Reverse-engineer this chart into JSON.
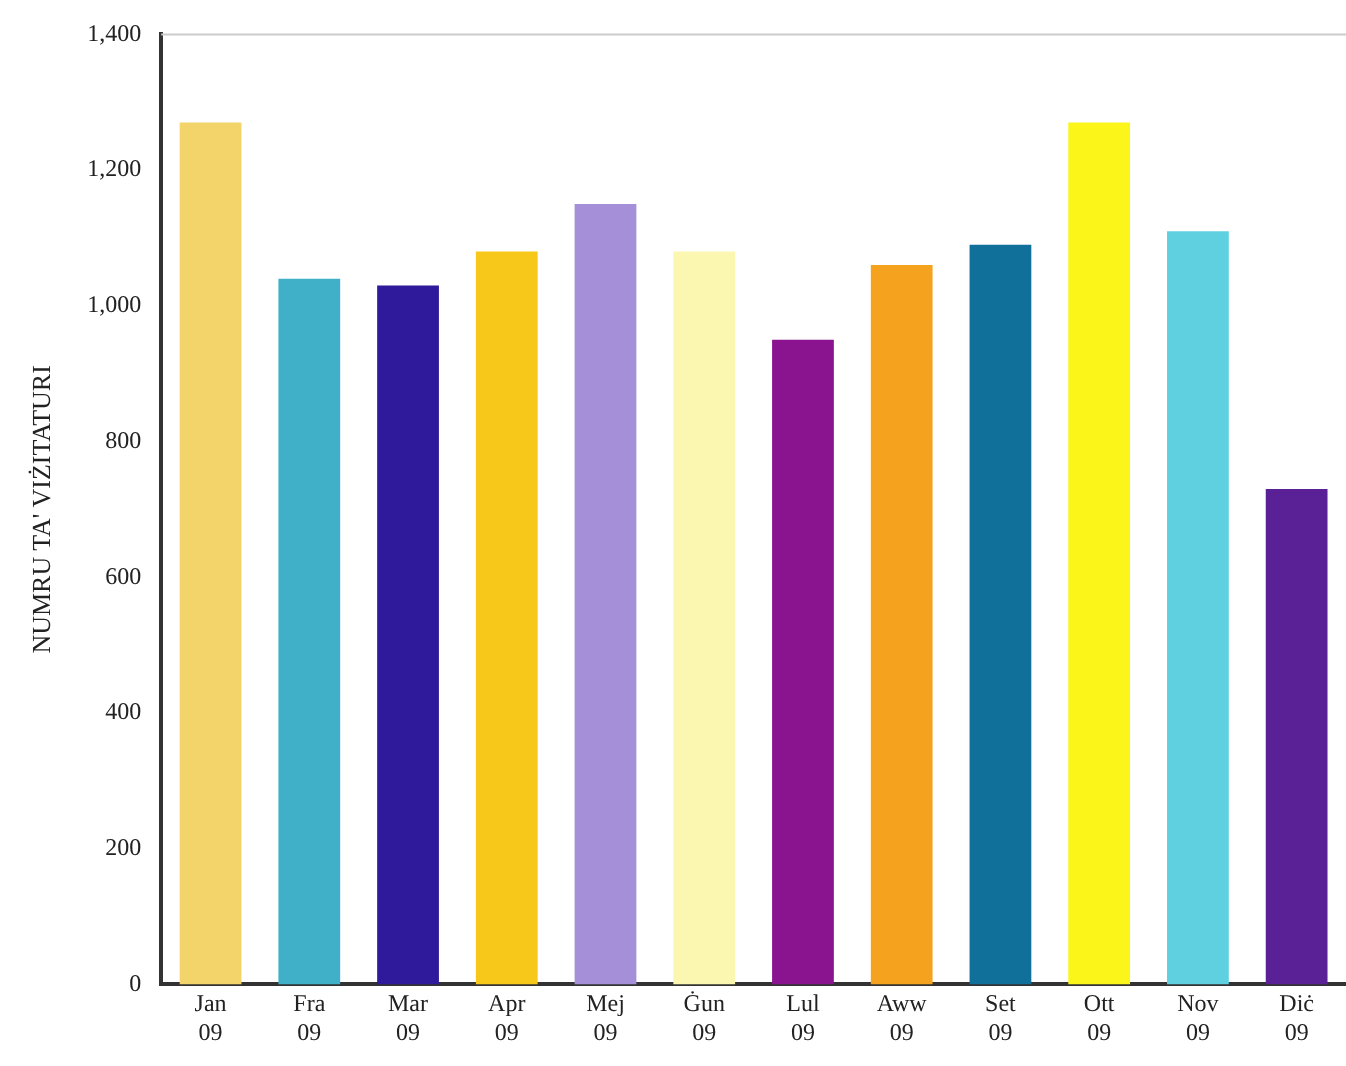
{
  "chart_data": {
    "type": "bar",
    "ylabel": "NUMRU TA' VIŻITATURI",
    "categories": [
      "Jan 09",
      "Fra 09",
      "Mar 09",
      "Apr 09",
      "Mej 09",
      "Ġun 09",
      "Lul 09",
      "Aww 09",
      "Set 09",
      "Ott 09",
      "Nov 09",
      "Diċ 09"
    ],
    "values": [
      1270,
      1040,
      1030,
      1080,
      1150,
      1080,
      950,
      1060,
      1090,
      1270,
      1110,
      730
    ],
    "colors": [
      "#f2d46a",
      "#3fb0c8",
      "#2e1a9a",
      "#f7c81a",
      "#a58fd8",
      "#fbf6b0",
      "#8a1490",
      "#f5a21e",
      "#10709a",
      "#fcf51a",
      "#5fd0e0",
      "#5a2096"
    ],
    "ylim": [
      0,
      1400
    ],
    "yticks": [
      0,
      200,
      400,
      600,
      800,
      {
        "value": 1000,
        "label": "1,000"
      },
      {
        "value": 1200,
        "label": "1,200"
      },
      {
        "value": 1400,
        "label": "1,400"
      }
    ],
    "grid": false,
    "legend": false
  }
}
